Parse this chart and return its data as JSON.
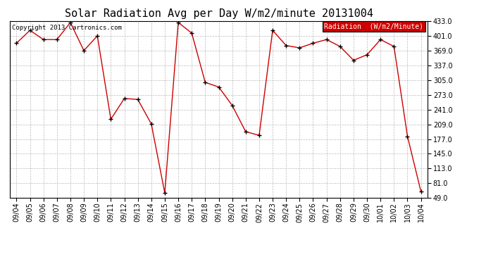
{
  "title": "Solar Radiation Avg per Day W/m2/minute 20131004",
  "copyright_text": "Copyright 2013 Cartronics.com",
  "legend_label": "Radiation  (W/m2/Minute)",
  "dates": [
    "09/04",
    "09/05",
    "09/06",
    "09/07",
    "09/08",
    "09/09",
    "09/10",
    "09/11",
    "09/12",
    "09/13",
    "09/14",
    "09/15",
    "09/16",
    "09/17",
    "09/18",
    "09/19",
    "09/20",
    "09/21",
    "09/22",
    "09/23",
    "09/24",
    "09/25",
    "09/26",
    "09/27",
    "09/28",
    "09/29",
    "09/30",
    "10/01",
    "10/02",
    "10/03",
    "10/04"
  ],
  "values": [
    385,
    413,
    393,
    393,
    430,
    369,
    401,
    220,
    265,
    263,
    210,
    60,
    430,
    407,
    300,
    290,
    250,
    193,
    185,
    413,
    380,
    375,
    385,
    393,
    378,
    348,
    360,
    393,
    378,
    183,
    63
  ],
  "ylim": [
    49.0,
    433.0
  ],
  "yticks": [
    49.0,
    81.0,
    113.0,
    145.0,
    177.0,
    209.0,
    241.0,
    273.0,
    305.0,
    337.0,
    369.0,
    401.0,
    433.0
  ],
  "line_color": "#cc0000",
  "marker_color": "#000000",
  "bg_color": "#ffffff",
  "plot_bg_color": "#ffffff",
  "grid_color": "#bbbbbb",
  "legend_bg": "#cc0000",
  "legend_text_color": "#ffffff",
  "title_fontsize": 11,
  "tick_fontsize": 7,
  "copyright_fontsize": 6.5,
  "legend_fontsize": 7
}
